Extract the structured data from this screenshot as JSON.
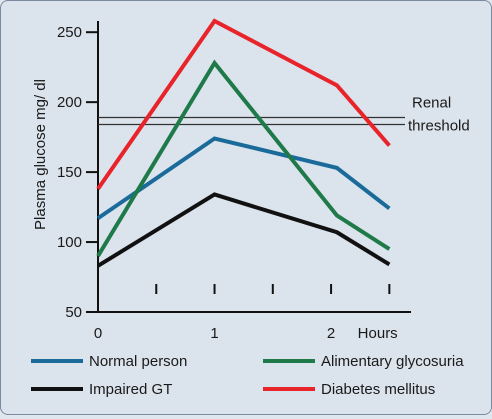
{
  "chart_data": {
    "type": "line",
    "ylabel": "Plasma glucose mg/ dl",
    "x_ticks": [
      {
        "value": 0,
        "label": "0"
      },
      {
        "value": 1,
        "label": "1"
      },
      {
        "value": 2,
        "label": "2"
      }
    ],
    "x_unit_label": "Hours",
    "x_minor_ticks": [
      0.5,
      1.0,
      1.5,
      2.0,
      2.5
    ],
    "xlim": [
      0,
      2.6
    ],
    "y_ticks": [
      50,
      100,
      150,
      200,
      250
    ],
    "ylim": [
      50,
      258
    ],
    "renal_threshold": {
      "values": [
        189,
        184
      ],
      "label_lines": [
        "Renal",
        "threshold"
      ]
    },
    "series": [
      {
        "name": "Normal person",
        "color": "#1a6a9a",
        "x": [
          0,
          1,
          2.05,
          2.5
        ],
        "y": [
          117,
          174,
          153,
          124
        ]
      },
      {
        "name": "Alimentary glycosuria",
        "color": "#1f7a4a",
        "x": [
          0,
          1,
          2.05,
          2.5
        ],
        "y": [
          90,
          228,
          119,
          95
        ]
      },
      {
        "name": "Impaired GT",
        "color": "#111111",
        "x": [
          0,
          1,
          2.05,
          2.5
        ],
        "y": [
          83,
          134,
          107,
          84
        ]
      },
      {
        "name": "Diabetes mellitus",
        "color": "#e8232a",
        "x": [
          0,
          1,
          2.05,
          2.5
        ],
        "y": [
          138,
          258,
          212,
          169
        ]
      }
    ],
    "legend_placement": "bottom",
    "grid": false
  }
}
